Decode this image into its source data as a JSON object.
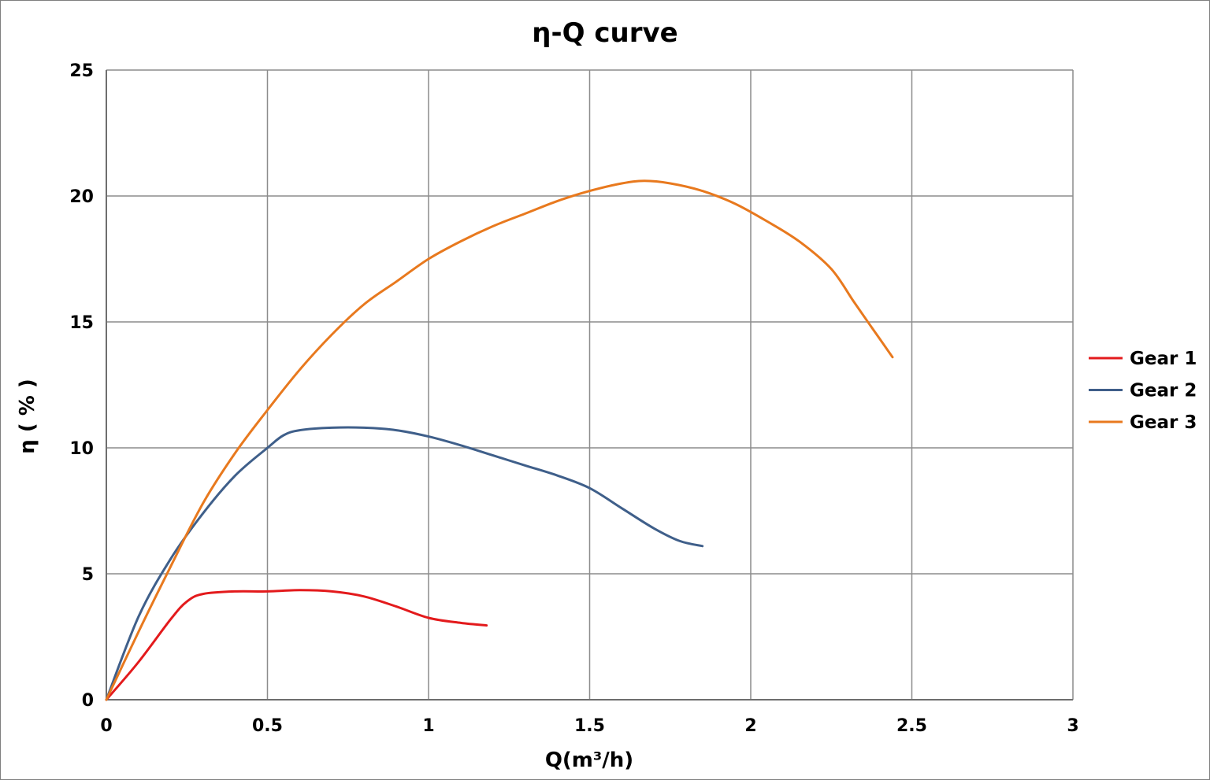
{
  "chart_data": {
    "type": "line",
    "title": "η-Q  curve",
    "xlabel": "Q(m³/h)",
    "ylabel": "η ( % )",
    "xlim": [
      0,
      3
    ],
    "ylim": [
      0,
      25
    ],
    "x_ticks": [
      0,
      0.5,
      1,
      1.5,
      2,
      2.5,
      3
    ],
    "x_tick_labels": [
      "0",
      "0.5",
      "1",
      "1.5",
      "2",
      "2.5",
      "3"
    ],
    "y_ticks": [
      0,
      5,
      10,
      15,
      20,
      25
    ],
    "y_tick_labels": [
      "0",
      "5",
      "10",
      "15",
      "20",
      "25"
    ],
    "grid": true,
    "legend_position": "right",
    "series": [
      {
        "name": "Gear 1",
        "color": "#e31a1c",
        "x": [
          0,
          0.1,
          0.2,
          0.25,
          0.3,
          0.4,
          0.5,
          0.6,
          0.7,
          0.8,
          0.9,
          1.0,
          1.1,
          1.18
        ],
        "y": [
          0,
          1.5,
          3.2,
          3.9,
          4.2,
          4.3,
          4.3,
          4.35,
          4.3,
          4.1,
          3.7,
          3.25,
          3.05,
          2.95
        ]
      },
      {
        "name": "Gear 2",
        "color": "#3f5f8a",
        "x": [
          0,
          0.1,
          0.2,
          0.3,
          0.4,
          0.5,
          0.55,
          0.6,
          0.7,
          0.8,
          0.9,
          1.0,
          1.1,
          1.2,
          1.3,
          1.4,
          1.5,
          1.6,
          1.7,
          1.78,
          1.85
        ],
        "y": [
          0,
          3.3,
          5.6,
          7.4,
          8.9,
          10.0,
          10.5,
          10.7,
          10.8,
          10.8,
          10.7,
          10.45,
          10.1,
          9.7,
          9.3,
          8.9,
          8.4,
          7.6,
          6.8,
          6.3,
          6.1
        ]
      },
      {
        "name": "Gear 3",
        "color": "#e8791e",
        "x": [
          0,
          0.1,
          0.2,
          0.3,
          0.4,
          0.5,
          0.6,
          0.7,
          0.8,
          0.9,
          1.0,
          1.1,
          1.2,
          1.3,
          1.4,
          1.5,
          1.6,
          1.67,
          1.75,
          1.85,
          1.95,
          2.05,
          2.15,
          2.25,
          2.32,
          2.38,
          2.44
        ],
        "y": [
          0,
          2.7,
          5.3,
          7.8,
          9.8,
          11.5,
          13.1,
          14.5,
          15.7,
          16.6,
          17.5,
          18.2,
          18.8,
          19.3,
          19.8,
          20.2,
          20.5,
          20.6,
          20.5,
          20.2,
          19.7,
          19.0,
          18.2,
          17.1,
          15.8,
          14.7,
          13.6
        ]
      }
    ]
  }
}
